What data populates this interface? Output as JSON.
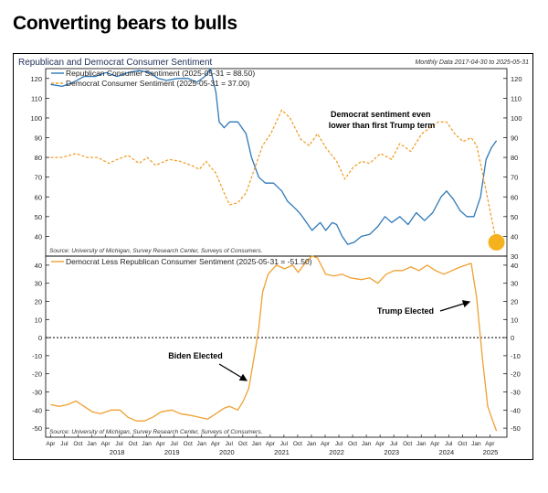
{
  "headline": "Converting bears to bulls",
  "chart_header": {
    "title": "Republican and Democrat Consumer Sentiment",
    "period_note": "Monthly Data 2017-04-30 to 2025-05-31"
  },
  "chart_data": [
    {
      "type": "line",
      "ylim": [
        30,
        125
      ],
      "yticks": [
        30,
        40,
        50,
        60,
        70,
        80,
        90,
        100,
        110,
        120
      ],
      "ytick_labels_left": [
        "",
        "40",
        "50",
        "60",
        "70",
        "80",
        "90",
        "100",
        "110",
        "120"
      ],
      "ytick_labels_right": [
        "30",
        "40",
        "50",
        "60",
        "70",
        "80",
        "90",
        "100",
        "110",
        "120"
      ],
      "series": [
        {
          "name": "Republican Consumer Sentiment (2025-05-31 = 88.50)",
          "color": "#2e78b8",
          "style": "solid",
          "points": [
            [
              2017.29,
              117
            ],
            [
              2017.5,
              116
            ],
            [
              2017.7,
              118
            ],
            [
              2017.9,
              121
            ],
            [
              2018.1,
              121
            ],
            [
              2018.3,
              123
            ],
            [
              2018.5,
              121
            ],
            [
              2018.7,
              123
            ],
            [
              2018.9,
              124
            ],
            [
              2019.1,
              123
            ],
            [
              2019.25,
              120
            ],
            [
              2019.4,
              119
            ],
            [
              2019.6,
              120
            ],
            [
              2019.8,
              120
            ],
            [
              2019.95,
              118
            ],
            [
              2020.1,
              121
            ],
            [
              2020.2,
              125
            ],
            [
              2020.3,
              113
            ],
            [
              2020.36,
              98
            ],
            [
              2020.45,
              95
            ],
            [
              2020.55,
              98
            ],
            [
              2020.7,
              98
            ],
            [
              2020.85,
              92
            ],
            [
              2020.95,
              80
            ],
            [
              2021.08,
              70
            ],
            [
              2021.2,
              67
            ],
            [
              2021.35,
              67
            ],
            [
              2021.5,
              63
            ],
            [
              2021.6,
              58
            ],
            [
              2021.75,
              54
            ],
            [
              2021.85,
              51
            ],
            [
              2021.95,
              47
            ],
            [
              2022.05,
              43
            ],
            [
              2022.2,
              47
            ],
            [
              2022.3,
              43
            ],
            [
              2022.42,
              47
            ],
            [
              2022.5,
              46
            ],
            [
              2022.6,
              40
            ],
            [
              2022.7,
              36
            ],
            [
              2022.82,
              37
            ],
            [
              2022.95,
              40
            ],
            [
              2023.1,
              41
            ],
            [
              2023.25,
              45
            ],
            [
              2023.38,
              50
            ],
            [
              2023.5,
              47
            ],
            [
              2023.65,
              50
            ],
            [
              2023.8,
              46
            ],
            [
              2023.95,
              52
            ],
            [
              2024.1,
              48
            ],
            [
              2024.25,
              52
            ],
            [
              2024.4,
              60
            ],
            [
              2024.5,
              63
            ],
            [
              2024.62,
              59
            ],
            [
              2024.75,
              53
            ],
            [
              2024.87,
              50
            ],
            [
              2025.0,
              50
            ],
            [
              2025.12,
              60
            ],
            [
              2025.22,
              79
            ],
            [
              2025.32,
              85
            ],
            [
              2025.41,
              88.5
            ]
          ]
        },
        {
          "name": "Democrat Consumer Sentiment (2025-05-31 = 37.00)",
          "color": "#f0a030",
          "style": "dashed",
          "points": [
            [
              2017.29,
              80
            ],
            [
              2017.5,
              80
            ],
            [
              2017.75,
              82
            ],
            [
              2017.95,
              80
            ],
            [
              2018.15,
              80
            ],
            [
              2018.35,
              77
            ],
            [
              2018.5,
              79
            ],
            [
              2018.7,
              81
            ],
            [
              2018.9,
              77
            ],
            [
              2019.05,
              80
            ],
            [
              2019.2,
              76
            ],
            [
              2019.45,
              79
            ],
            [
              2019.65,
              78
            ],
            [
              2019.85,
              76
            ],
            [
              2020.0,
              74
            ],
            [
              2020.12,
              78
            ],
            [
              2020.3,
              72
            ],
            [
              2020.45,
              62
            ],
            [
              2020.55,
              56
            ],
            [
              2020.7,
              57
            ],
            [
              2020.85,
              62
            ],
            [
              2021.0,
              74
            ],
            [
              2021.15,
              86
            ],
            [
              2021.3,
              92
            ],
            [
              2021.5,
              104
            ],
            [
              2021.65,
              100
            ],
            [
              2021.85,
              89
            ],
            [
              2022.0,
              86
            ],
            [
              2022.15,
              92
            ],
            [
              2022.3,
              85
            ],
            [
              2022.5,
              78
            ],
            [
              2022.65,
              69
            ],
            [
              2022.8,
              75
            ],
            [
              2022.95,
              78
            ],
            [
              2023.1,
              77
            ],
            [
              2023.3,
              82
            ],
            [
              2023.5,
              79
            ],
            [
              2023.65,
              87
            ],
            [
              2023.85,
              83
            ],
            [
              2024.05,
              92
            ],
            [
              2024.2,
              95
            ],
            [
              2024.35,
              98
            ],
            [
              2024.5,
              98
            ],
            [
              2024.65,
              92
            ],
            [
              2024.8,
              88
            ],
            [
              2024.95,
              90
            ],
            [
              2025.05,
              86
            ],
            [
              2025.15,
              73
            ],
            [
              2025.3,
              52
            ],
            [
              2025.41,
              37
            ]
          ]
        }
      ],
      "annotation": "Democrat sentiment even lower than first Trump term",
      "highlight": {
        "x": 2025.41,
        "y": 37,
        "color": "#f5b21e"
      },
      "source": "Source:  University of Michigan, Survey Research Center, Surveys of Consumers."
    },
    {
      "type": "line",
      "ylim": [
        -55,
        45
      ],
      "yticks": [
        -50,
        -40,
        -30,
        -20,
        -10,
        0,
        10,
        20,
        30,
        40
      ],
      "ytick_labels": [
        "-50",
        "-40",
        "-30",
        "-20",
        "-10",
        "0",
        "10",
        "20",
        "30",
        "40"
      ],
      "series": [
        {
          "name": "Democrat Less Republican Consumer Sentiment (2025-05-31 = -51.50)",
          "color": "#f0a030",
          "style": "solid",
          "points": [
            [
              2017.29,
              -37
            ],
            [
              2017.45,
              -38
            ],
            [
              2017.6,
              -37
            ],
            [
              2017.75,
              -35
            ],
            [
              2017.9,
              -38
            ],
            [
              2018.05,
              -41
            ],
            [
              2018.2,
              -42
            ],
            [
              2018.4,
              -40
            ],
            [
              2018.55,
              -40
            ],
            [
              2018.7,
              -44
            ],
            [
              2018.85,
              -46
            ],
            [
              2019.0,
              -46
            ],
            [
              2019.15,
              -44
            ],
            [
              2019.3,
              -41
            ],
            [
              2019.5,
              -40
            ],
            [
              2019.65,
              -42
            ],
            [
              2019.85,
              -43
            ],
            [
              2020.0,
              -44
            ],
            [
              2020.15,
              -45
            ],
            [
              2020.3,
              -42
            ],
            [
              2020.45,
              -39
            ],
            [
              2020.55,
              -38
            ],
            [
              2020.7,
              -40
            ],
            [
              2020.8,
              -35
            ],
            [
              2020.9,
              -28
            ],
            [
              2021.0,
              -10
            ],
            [
              2021.08,
              5
            ],
            [
              2021.15,
              25
            ],
            [
              2021.25,
              35
            ],
            [
              2021.4,
              40
            ],
            [
              2021.55,
              38
            ],
            [
              2021.7,
              40
            ],
            [
              2021.8,
              36
            ],
            [
              2021.95,
              42
            ],
            [
              2022.05,
              45
            ],
            [
              2022.15,
              44
            ],
            [
              2022.3,
              35
            ],
            [
              2022.45,
              34
            ],
            [
              2022.6,
              35
            ],
            [
              2022.75,
              33
            ],
            [
              2022.95,
              32
            ],
            [
              2023.1,
              33
            ],
            [
              2023.25,
              30
            ],
            [
              2023.4,
              35
            ],
            [
              2023.55,
              37
            ],
            [
              2023.7,
              37
            ],
            [
              2023.85,
              39
            ],
            [
              2024.0,
              37
            ],
            [
              2024.15,
              40
            ],
            [
              2024.3,
              37
            ],
            [
              2024.45,
              35
            ],
            [
              2024.6,
              37
            ],
            [
              2024.75,
              39
            ],
            [
              2024.85,
              40
            ],
            [
              2024.95,
              41
            ],
            [
              2025.05,
              22
            ],
            [
              2025.15,
              -10
            ],
            [
              2025.25,
              -38
            ],
            [
              2025.33,
              -45
            ],
            [
              2025.41,
              -51.5
            ]
          ]
        }
      ],
      "reference_line": {
        "y": 0,
        "style": "dotted",
        "color": "#000000"
      },
      "annotations": [
        {
          "text": "Biden Elected",
          "x": 2020.84
        },
        {
          "text": "Trump Elected",
          "x": 2024.84
        }
      ],
      "source": "Source:  University of Michigan, Survey Research Center, Surveys of Consumers."
    }
  ],
  "x_axis": {
    "xlim": [
      2017.2,
      2025.6
    ],
    "month_ticks": [
      {
        "label": "Apr",
        "x": 2017.29
      },
      {
        "label": "Jul",
        "x": 2017.54
      },
      {
        "label": "Oct",
        "x": 2017.79
      },
      {
        "label": "Jan",
        "x": 2018.04
      },
      {
        "label": "Apr",
        "x": 2018.29
      },
      {
        "label": "Jul",
        "x": 2018.54
      },
      {
        "label": "Oct",
        "x": 2018.79
      },
      {
        "label": "Jan",
        "x": 2019.04
      },
      {
        "label": "Apr",
        "x": 2019.29
      },
      {
        "label": "Jul",
        "x": 2019.54
      },
      {
        "label": "Oct",
        "x": 2019.79
      },
      {
        "label": "Jan",
        "x": 2020.04
      },
      {
        "label": "Apr",
        "x": 2020.29
      },
      {
        "label": "Jul",
        "x": 2020.54
      },
      {
        "label": "Oct",
        "x": 2020.79
      },
      {
        "label": "Jan",
        "x": 2021.04
      },
      {
        "label": "Apr",
        "x": 2021.29
      },
      {
        "label": "Jul",
        "x": 2021.54
      },
      {
        "label": "Oct",
        "x": 2021.79
      },
      {
        "label": "Jan",
        "x": 2022.04
      },
      {
        "label": "Apr",
        "x": 2022.29
      },
      {
        "label": "Jul",
        "x": 2022.54
      },
      {
        "label": "Oct",
        "x": 2022.79
      },
      {
        "label": "Jan",
        "x": 2023.04
      },
      {
        "label": "Apr",
        "x": 2023.29
      },
      {
        "label": "Jul",
        "x": 2023.54
      },
      {
        "label": "Oct",
        "x": 2023.79
      },
      {
        "label": "Jan",
        "x": 2024.04
      },
      {
        "label": "Apr",
        "x": 2024.29
      },
      {
        "label": "Jul",
        "x": 2024.54
      },
      {
        "label": "Oct",
        "x": 2024.79
      },
      {
        "label": "Jan",
        "x": 2025.04
      },
      {
        "label": "Apr",
        "x": 2025.29
      }
    ],
    "year_labels": [
      {
        "label": "2018",
        "x": 2018.5
      },
      {
        "label": "2019",
        "x": 2019.5
      },
      {
        "label": "2020",
        "x": 2020.5
      },
      {
        "label": "2021",
        "x": 2021.5
      },
      {
        "label": "2022",
        "x": 2022.5
      },
      {
        "label": "2023",
        "x": 2023.5
      },
      {
        "label": "2024",
        "x": 2024.5
      },
      {
        "label": "2025",
        "x": 2025.3
      }
    ]
  }
}
